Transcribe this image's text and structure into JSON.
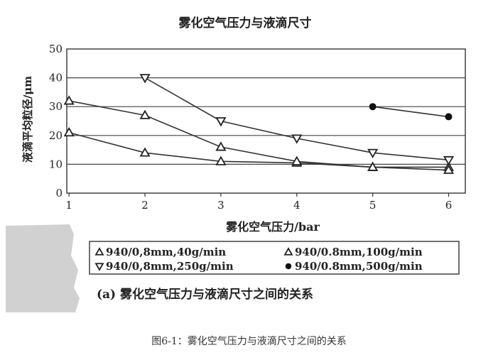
{
  "chart_data": {
    "type": "line",
    "title": "雾化空气压力与液滴尺寸",
    "xlabel": "雾化空气压力/bar",
    "ylabel": "液滴平均粒径/μm",
    "x_ticks": [
      "1",
      "2",
      "3",
      "4",
      "5",
      "6"
    ],
    "y_ticks": [
      "0",
      "10",
      "20",
      "30",
      "40",
      "50"
    ],
    "xlim": [
      0.97,
      6.22
    ],
    "ylim": [
      0,
      50
    ],
    "grid": "horizontal",
    "legend_position": "bottom",
    "series": [
      {
        "name": "940/0,8mm,40g/min",
        "marker": "triangle-up",
        "x": [
          1,
          2,
          3,
          4,
          5,
          6
        ],
        "y": [
          21,
          14,
          11,
          10.5,
          9,
          9
        ]
      },
      {
        "name": "940/0.8mm,100g/min",
        "marker": "triangle-up",
        "x": [
          1,
          2,
          3,
          4,
          5,
          6
        ],
        "y": [
          32,
          27,
          16,
          11,
          9,
          8
        ]
      },
      {
        "name": "940/0,8mm,250g/min",
        "marker": "triangle-down",
        "x": [
          2,
          3,
          4,
          5,
          6
        ],
        "y": [
          40,
          25,
          19,
          14,
          11.5
        ]
      },
      {
        "name": "940/0.8mm,500g/min",
        "marker": "circle",
        "x": [
          5,
          6
        ],
        "y": [
          30,
          26.5
        ]
      }
    ],
    "subcaption": "(a) 雾化空气压力与液滴尺寸之间的关系"
  },
  "caption": "图6-1：雾化空气压力与液滴尺寸之间的关系"
}
